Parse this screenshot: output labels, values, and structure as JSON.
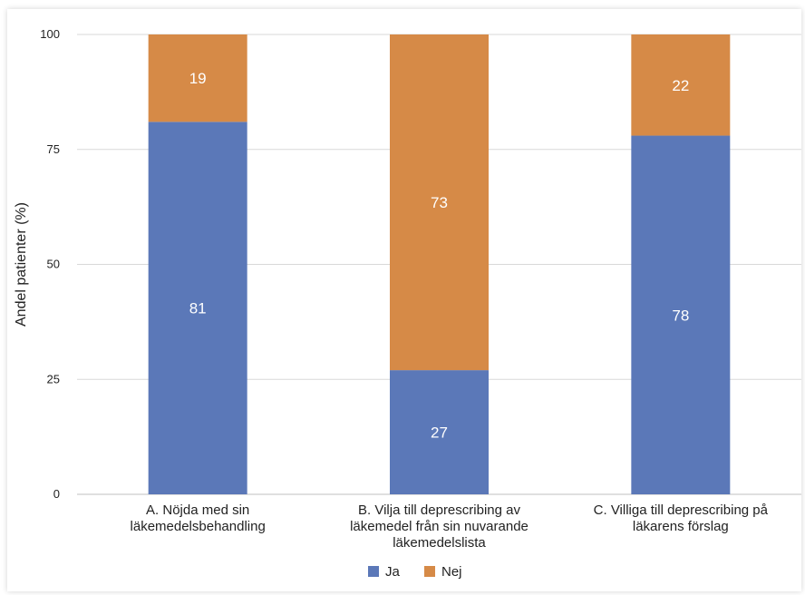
{
  "chart_data": {
    "type": "bar",
    "stacked": true,
    "title": "",
    "xlabel": "",
    "ylabel": "Andel patienter (%)",
    "ylim": [
      0,
      100
    ],
    "yticks": [
      0,
      25,
      50,
      75,
      100
    ],
    "grid": true,
    "legend_position": "bottom",
    "categories": [
      [
        "A. Nöjda med sin",
        "läkemedelsbehandling"
      ],
      [
        "B. Vilja till deprescribing av",
        "läkemedel från sin nuvarande",
        "läkemedelslista"
      ],
      [
        "C. Villiga till deprescribing på",
        "läkarens förslag"
      ]
    ],
    "series": [
      {
        "name": "Ja",
        "color": "#5b78b8",
        "values": [
          81,
          27,
          78
        ]
      },
      {
        "name": "Nej",
        "color": "#d68a47",
        "values": [
          19,
          73,
          22
        ]
      }
    ]
  }
}
